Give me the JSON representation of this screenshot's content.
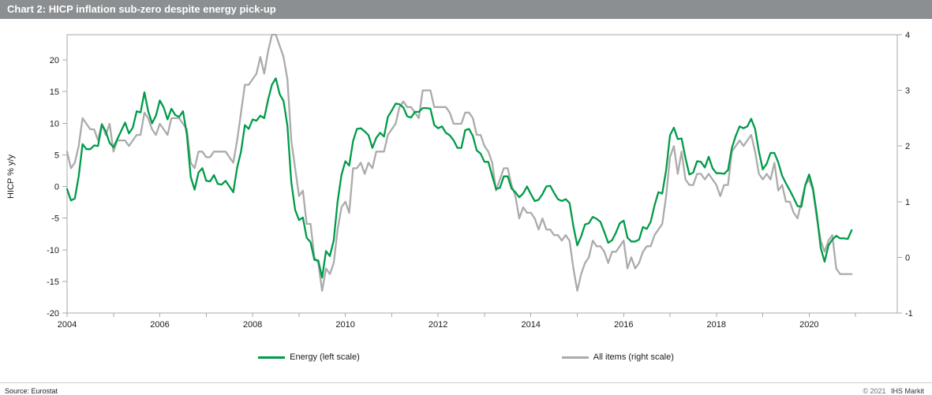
{
  "header": {
    "title": "Chart 2: HICP inflation sub-zero despite energy pick-up",
    "bar_color": "#8b8f92"
  },
  "footer": {
    "source": "Source: Eurostat",
    "copyright": "© 2021",
    "brand": "IHS Markit"
  },
  "chart_data": {
    "type": "line",
    "title": "Chart 2: HICP inflation sub-zero despite energy pick-up",
    "ylabel_left": "HICP % y/y",
    "x_frequency": "monthly",
    "x_start_year": 2004,
    "x_end": "2020-12",
    "x_range_years": [
      2004,
      2021.9
    ],
    "x_tick_years": [
      2004,
      2005,
      2006,
      2007,
      2008,
      2009,
      2010,
      2011,
      2012,
      2013,
      2014,
      2015,
      2016,
      2017,
      2018,
      2019,
      2020,
      2021
    ],
    "x_label_years": [
      2004,
      2006,
      2008,
      2010,
      2012,
      2014,
      2016,
      2018,
      2020
    ],
    "left_axis": {
      "min": -20,
      "max": 24,
      "ticks": [
        -20,
        -15,
        -10,
        -5,
        0,
        5,
        10,
        15,
        20
      ]
    },
    "right_axis": {
      "min": -1,
      "max": 4,
      "ticks": [
        -1,
        0,
        1,
        2,
        3,
        4
      ]
    },
    "grid": false,
    "legend_position": "bottom",
    "series": [
      {
        "id": "energy",
        "name": "Energy (left scale)",
        "axis": "left",
        "color": "#009b49",
        "values": [
          -0.4,
          -2.2,
          -1.9,
          1.6,
          6.7,
          5.9,
          5.9,
          6.5,
          6.4,
          9.8,
          8.7,
          6.9,
          6.2,
          7.5,
          8.8,
          10.1,
          8.4,
          9.3,
          11.9,
          11.7,
          14.9,
          11.9,
          10.0,
          11.2,
          13.6,
          12.5,
          10.6,
          12.3,
          11.3,
          11.0,
          11.9,
          8.2,
          1.5,
          -0.5,
          2.2,
          2.9,
          0.9,
          0.8,
          1.8,
          0.4,
          0.3,
          0.9,
          0.0,
          -0.9,
          3.0,
          5.5,
          9.7,
          9.1,
          10.6,
          10.4,
          11.2,
          10.8,
          13.7,
          16.1,
          17.1,
          14.6,
          13.5,
          9.6,
          0.7,
          -3.7,
          -5.3,
          -4.9,
          -8.1,
          -8.8,
          -11.6,
          -11.7,
          -14.4,
          -10.2,
          -11.0,
          -8.5,
          -2.4,
          1.8,
          4.0,
          3.3,
          7.2,
          9.1,
          9.2,
          8.7,
          8.1,
          6.1,
          7.7,
          8.5,
          7.9,
          11.0,
          12.0,
          13.1,
          13.0,
          12.5,
          11.1,
          10.9,
          11.8,
          11.8,
          12.4,
          12.4,
          12.3,
          9.7,
          9.2,
          9.5,
          8.5,
          8.1,
          7.3,
          6.1,
          6.1,
          8.9,
          9.1,
          8.0,
          5.7,
          5.2,
          3.9,
          3.9,
          1.7,
          -0.4,
          -0.2,
          1.6,
          1.6,
          -0.3,
          -0.9,
          -1.7,
          -1.1,
          0.0,
          -1.2,
          -2.3,
          -2.1,
          -1.2,
          0.0,
          0.1,
          -1.0,
          -2.0,
          -2.3,
          -2.0,
          -2.6,
          -6.3,
          -9.3,
          -7.9,
          -6.0,
          -5.8,
          -4.8,
          -5.1,
          -5.6,
          -7.2,
          -8.9,
          -8.5,
          -7.3,
          -5.8,
          -5.4,
          -8.1,
          -8.7,
          -8.7,
          -8.4,
          -6.4,
          -6.7,
          -5.6,
          -3.0,
          -0.9,
          -1.1,
          2.6,
          8.1,
          9.3,
          7.5,
          7.6,
          4.5,
          1.9,
          2.2,
          4.0,
          3.9,
          3.0,
          4.7,
          2.9,
          2.1,
          2.1,
          2.0,
          2.6,
          6.1,
          8.0,
          9.5,
          9.2,
          9.5,
          10.7,
          9.1,
          5.5,
          2.7,
          3.6,
          5.3,
          5.3,
          3.8,
          1.7,
          0.5,
          -0.6,
          -1.8,
          -3.1,
          -3.2,
          0.2,
          1.9,
          -0.3,
          -4.5,
          -9.7,
          -11.9,
          -9.3,
          -8.4,
          -7.8,
          -8.2,
          -8.2,
          -8.3,
          -6.9
        ]
      },
      {
        "id": "all-items",
        "name": "All items (right scale)",
        "axis": "right",
        "color": "#ababab",
        "values": [
          1.9,
          1.6,
          1.7,
          2.0,
          2.5,
          2.4,
          2.3,
          2.3,
          2.1,
          2.4,
          2.2,
          2.4,
          1.9,
          2.1,
          2.1,
          2.1,
          2.0,
          2.1,
          2.2,
          2.2,
          2.6,
          2.5,
          2.3,
          2.2,
          2.4,
          2.3,
          2.2,
          2.5,
          2.5,
          2.5,
          2.4,
          2.3,
          1.7,
          1.6,
          1.9,
          1.9,
          1.8,
          1.8,
          1.9,
          1.9,
          1.9,
          1.9,
          1.8,
          1.7,
          2.1,
          2.6,
          3.1,
          3.1,
          3.2,
          3.3,
          3.6,
          3.3,
          3.7,
          4.0,
          4.0,
          3.8,
          3.6,
          3.2,
          2.1,
          1.6,
          1.1,
          1.2,
          0.6,
          0.6,
          0.0,
          -0.1,
          -0.6,
          -0.2,
          -0.3,
          -0.1,
          0.5,
          0.9,
          1.0,
          0.8,
          1.6,
          1.6,
          1.7,
          1.5,
          1.7,
          1.6,
          1.9,
          1.9,
          1.9,
          2.2,
          2.3,
          2.4,
          2.7,
          2.8,
          2.7,
          2.7,
          2.6,
          2.5,
          3.0,
          3.0,
          3.0,
          2.7,
          2.7,
          2.7,
          2.7,
          2.6,
          2.4,
          2.4,
          2.4,
          2.6,
          2.6,
          2.5,
          2.2,
          2.2,
          2.0,
          1.9,
          1.7,
          1.2,
          1.4,
          1.6,
          1.6,
          1.3,
          1.1,
          0.7,
          0.9,
          0.8,
          0.8,
          0.7,
          0.5,
          0.7,
          0.5,
          0.5,
          0.4,
          0.4,
          0.3,
          0.4,
          0.3,
          -0.2,
          -0.6,
          -0.3,
          -0.1,
          0.0,
          0.3,
          0.2,
          0.2,
          0.1,
          -0.1,
          0.1,
          0.1,
          0.2,
          0.3,
          -0.2,
          0.0,
          -0.2,
          -0.1,
          0.1,
          0.2,
          0.2,
          0.4,
          0.5,
          0.6,
          1.1,
          1.8,
          2.0,
          1.5,
          1.9,
          1.4,
          1.3,
          1.3,
          1.5,
          1.5,
          1.4,
          1.5,
          1.4,
          1.3,
          1.1,
          1.3,
          1.3,
          1.9,
          2.0,
          2.1,
          2.0,
          2.1,
          2.2,
          1.9,
          1.5,
          1.4,
          1.5,
          1.4,
          1.7,
          1.2,
          1.3,
          1.0,
          1.0,
          0.8,
          0.7,
          1.0,
          1.3,
          1.4,
          1.2,
          0.7,
          0.3,
          0.1,
          0.3,
          0.4,
          -0.2,
          -0.3,
          -0.3,
          -0.3,
          -0.3
        ]
      }
    ]
  }
}
